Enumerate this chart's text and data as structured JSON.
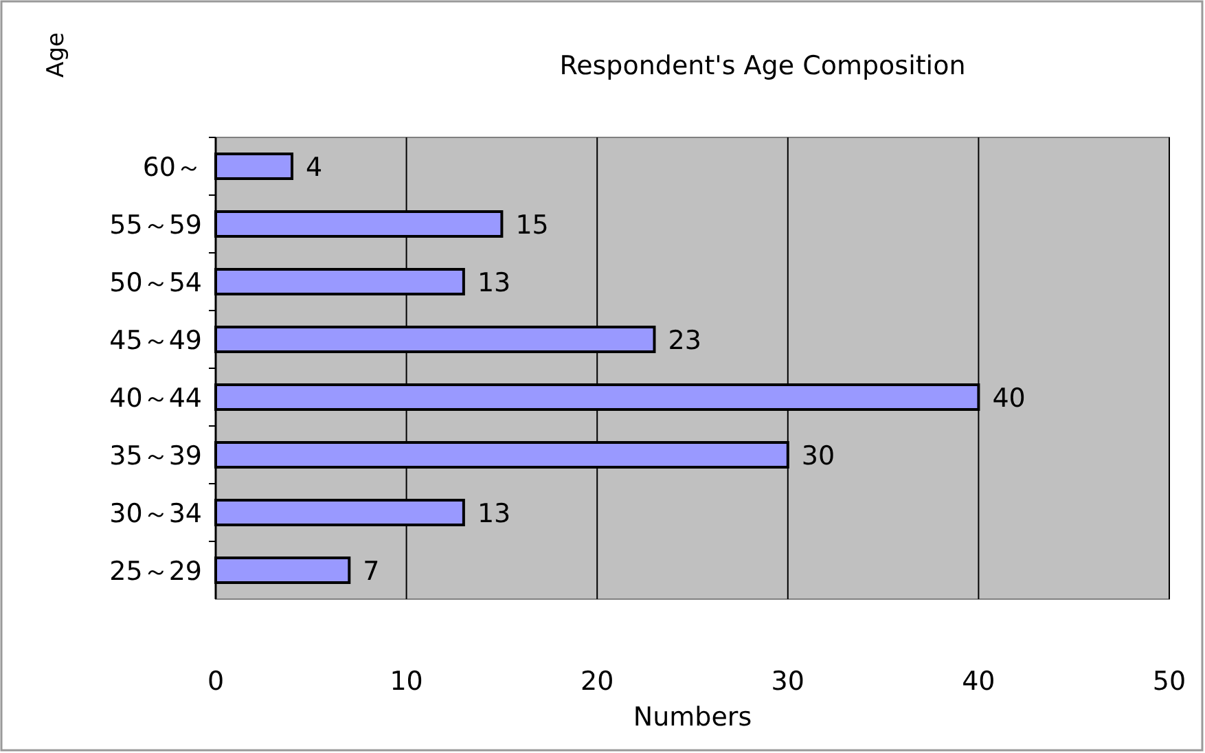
{
  "chart_data": {
    "type": "bar",
    "orientation": "horizontal",
    "title": "Respondent's Age Composition",
    "xlabel": "Numbers",
    "ylabel": "Age",
    "categories": [
      "60～",
      "55～59",
      "50～54",
      "45～49",
      "40～44",
      "35～39",
      "30～34",
      "25～29"
    ],
    "values": [
      4,
      15,
      13,
      23,
      40,
      30,
      13,
      7
    ],
    "color": "#9999ff",
    "xlim": [
      0,
      50
    ],
    "xticks": [
      0,
      10,
      20,
      30,
      40,
      50
    ],
    "grid": "x",
    "data_labels": true
  }
}
